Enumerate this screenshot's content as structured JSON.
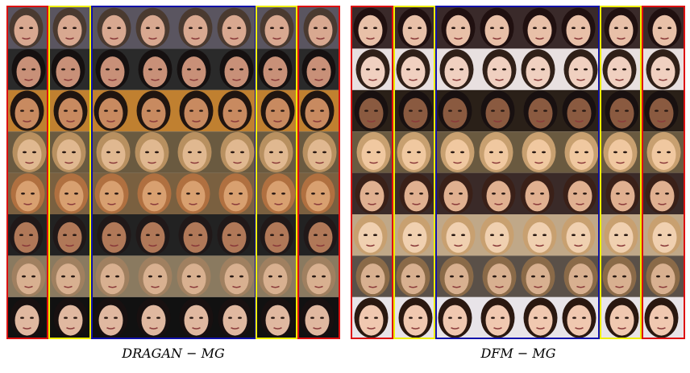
{
  "panels": [
    {
      "caption": "DRAGAN − MG"
    },
    {
      "caption": "DFM − MG"
    }
  ]
}
